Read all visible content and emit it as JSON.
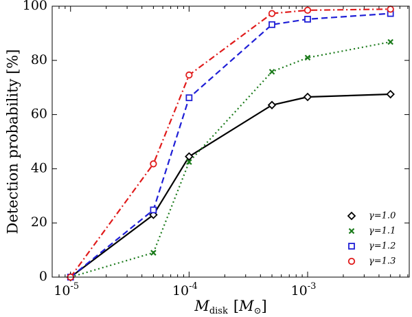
{
  "chart_data": {
    "type": "line",
    "xscale": "log",
    "x": [
      1e-05,
      5e-05,
      0.0001,
      0.0005,
      0.001,
      0.005
    ],
    "xlim": [
      7e-06,
      0.0072
    ],
    "ylim": [
      0,
      100
    ],
    "yticks": [
      0,
      20,
      40,
      60,
      80,
      100
    ],
    "ytick_labels": [
      "0",
      "20",
      "40",
      "60",
      "80",
      "100"
    ],
    "xticks": [
      {
        "value": 1e-05,
        "base": "10",
        "exp": "-5"
      },
      {
        "value": 0.0001,
        "base": "10",
        "exp": "-4"
      },
      {
        "value": 0.001,
        "base": "10",
        "exp": "-3"
      }
    ],
    "ylabel": "Detection probability [%]",
    "xlabel": {
      "main": "M",
      "sub": "disk",
      "unit_open": "[",
      "unit_main": "M",
      "unit_sub": "⊙",
      "unit_close": "]"
    },
    "legend_position": "lower-right",
    "series": [
      {
        "name": "γ=1.0",
        "color": "#000000",
        "marker": "diamond",
        "linestyle": "solid",
        "values": [
          0,
          23,
          44.5,
          63.5,
          66.5,
          67.5
        ]
      },
      {
        "name": "γ=1.1",
        "color": "#1a7a1a",
        "marker": "x",
        "linestyle": "dotted",
        "values": [
          0,
          9,
          42.5,
          75.8,
          81,
          86.8
        ]
      },
      {
        "name": "γ=1.2",
        "color": "#1f1fd6",
        "marker": "square",
        "linestyle": "dashed",
        "values": [
          0,
          24.8,
          66.2,
          93.2,
          95.2,
          97.3
        ]
      },
      {
        "name": "γ=1.3",
        "color": "#e01b1b",
        "marker": "circle",
        "linestyle": "dashdot",
        "values": [
          0,
          41.8,
          74.6,
          97.3,
          98.5,
          98.9
        ]
      }
    ]
  }
}
